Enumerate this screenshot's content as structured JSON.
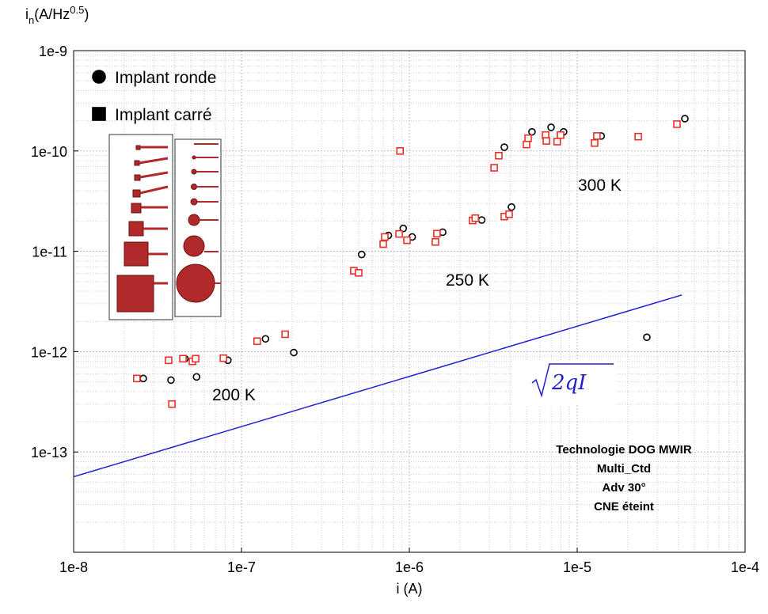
{
  "chart_data": {
    "type": "scatter",
    "y_label_parts": [
      "i",
      "n",
      "(A/Hz",
      "0.5",
      ")"
    ],
    "x_label": "i (A)",
    "xscale": "log",
    "yscale": "log",
    "grid": true,
    "xlim": [
      1e-08,
      0.0001
    ],
    "xticks": [
      {
        "value": 1e-08,
        "label": "1e-8"
      },
      {
        "value": 1e-07,
        "label": "1e-7"
      },
      {
        "value": 1e-06,
        "label": "1e-6"
      },
      {
        "value": 1e-05,
        "label": "1e-5"
      },
      {
        "value": 0.0001,
        "label": "1e-4"
      }
    ],
    "ylim": [
      1e-14,
      1e-09
    ],
    "yticks": [
      {
        "value": 1e-13,
        "label": "1e-13"
      },
      {
        "value": 1e-12,
        "label": "1e-12"
      },
      {
        "value": 1e-11,
        "label": "1e-11"
      },
      {
        "value": 1e-10,
        "label": "1e-10"
      },
      {
        "value": 1e-09,
        "label": "1e-9"
      }
    ],
    "legend_position": "upper left",
    "legend_marker_color": "#000000",
    "series": [
      {
        "name": "Implant ronde",
        "marker": "circle",
        "color": "#000000",
        "x": [
          2.6e-08,
          3.8e-08,
          4.6e-08,
          5.4e-08,
          8.3e-08,
          1.39e-07,
          2.05e-07,
          5.2e-07,
          7.5e-07,
          9.2e-07,
          1.04e-06,
          1.58e-06,
          2.7e-06,
          3.68e-06,
          4.06e-06,
          5.38e-06,
          6.99e-06,
          8.3e-06,
          1.39e-05,
          4.38e-05,
          2.6e-05
        ],
        "values": [
          5.4e-13,
          5.2e-13,
          8.5e-13,
          5.6e-13,
          8.2e-13,
          1.34e-12,
          9.8e-13,
          9.3e-12,
          1.44e-11,
          1.69e-11,
          1.39e-11,
          1.55e-11,
          2.05e-11,
          1.09e-10,
          2.76e-11,
          1.55e-10,
          1.72e-10,
          1.55e-10,
          1.41e-10,
          2.1e-10,
          1.39e-12
        ]
      },
      {
        "name": "Implant carré",
        "marker": "square",
        "color": "#e8302a",
        "x": [
          2.38e-08,
          3.68e-08,
          3.85e-08,
          4.48e-08,
          5.1e-08,
          5.33e-08,
          7.8e-08,
          1.24e-07,
          1.82e-07,
          4.67e-07,
          4.99e-07,
          6.99e-07,
          7.14e-07,
          8.69e-07,
          8.8e-07,
          9.68e-07,
          1.43e-06,
          1.46e-06,
          2.38e-06,
          2.47e-06,
          3.2e-06,
          3.41e-06,
          3.68e-06,
          3.93e-06,
          4.99e-06,
          5.1e-06,
          6.48e-06,
          6.55e-06,
          7.6e-06,
          7.96e-06,
          1.27e-05,
          1.31e-05,
          2.31e-05,
          3.93e-05
        ],
        "values": [
          5.4e-13,
          8.2e-13,
          3e-13,
          8.5e-13,
          8e-13,
          8.5e-13,
          8.6e-13,
          1.27e-12,
          1.49e-12,
          6.4e-12,
          6.1e-12,
          1.18e-11,
          1.39e-11,
          1.49e-11,
          1e-10,
          1.29e-11,
          1.24e-11,
          1.5e-11,
          2.03e-11,
          2.14e-11,
          6.8e-11,
          8.97e-11,
          2.22e-11,
          2.34e-11,
          1.16e-10,
          1.34e-10,
          1.44e-10,
          1.26e-10,
          1.24e-10,
          1.44e-10,
          1.2e-10,
          1.41e-10,
          1.39e-10,
          1.85e-10
        ]
      }
    ],
    "reference_line": {
      "formula": "2qI",
      "color": "#1f1fd0",
      "x": [
        1e-08,
        4.2e-05
      ],
      "values": [
        5.66e-14,
        3.67e-12
      ]
    },
    "annotations": [
      "300 K",
      "250 K",
      "200 K"
    ],
    "info_lines": [
      "Technologie DOG MWIR",
      "Multi_Ctd",
      "Adv 30°",
      "CNE éteint"
    ]
  }
}
